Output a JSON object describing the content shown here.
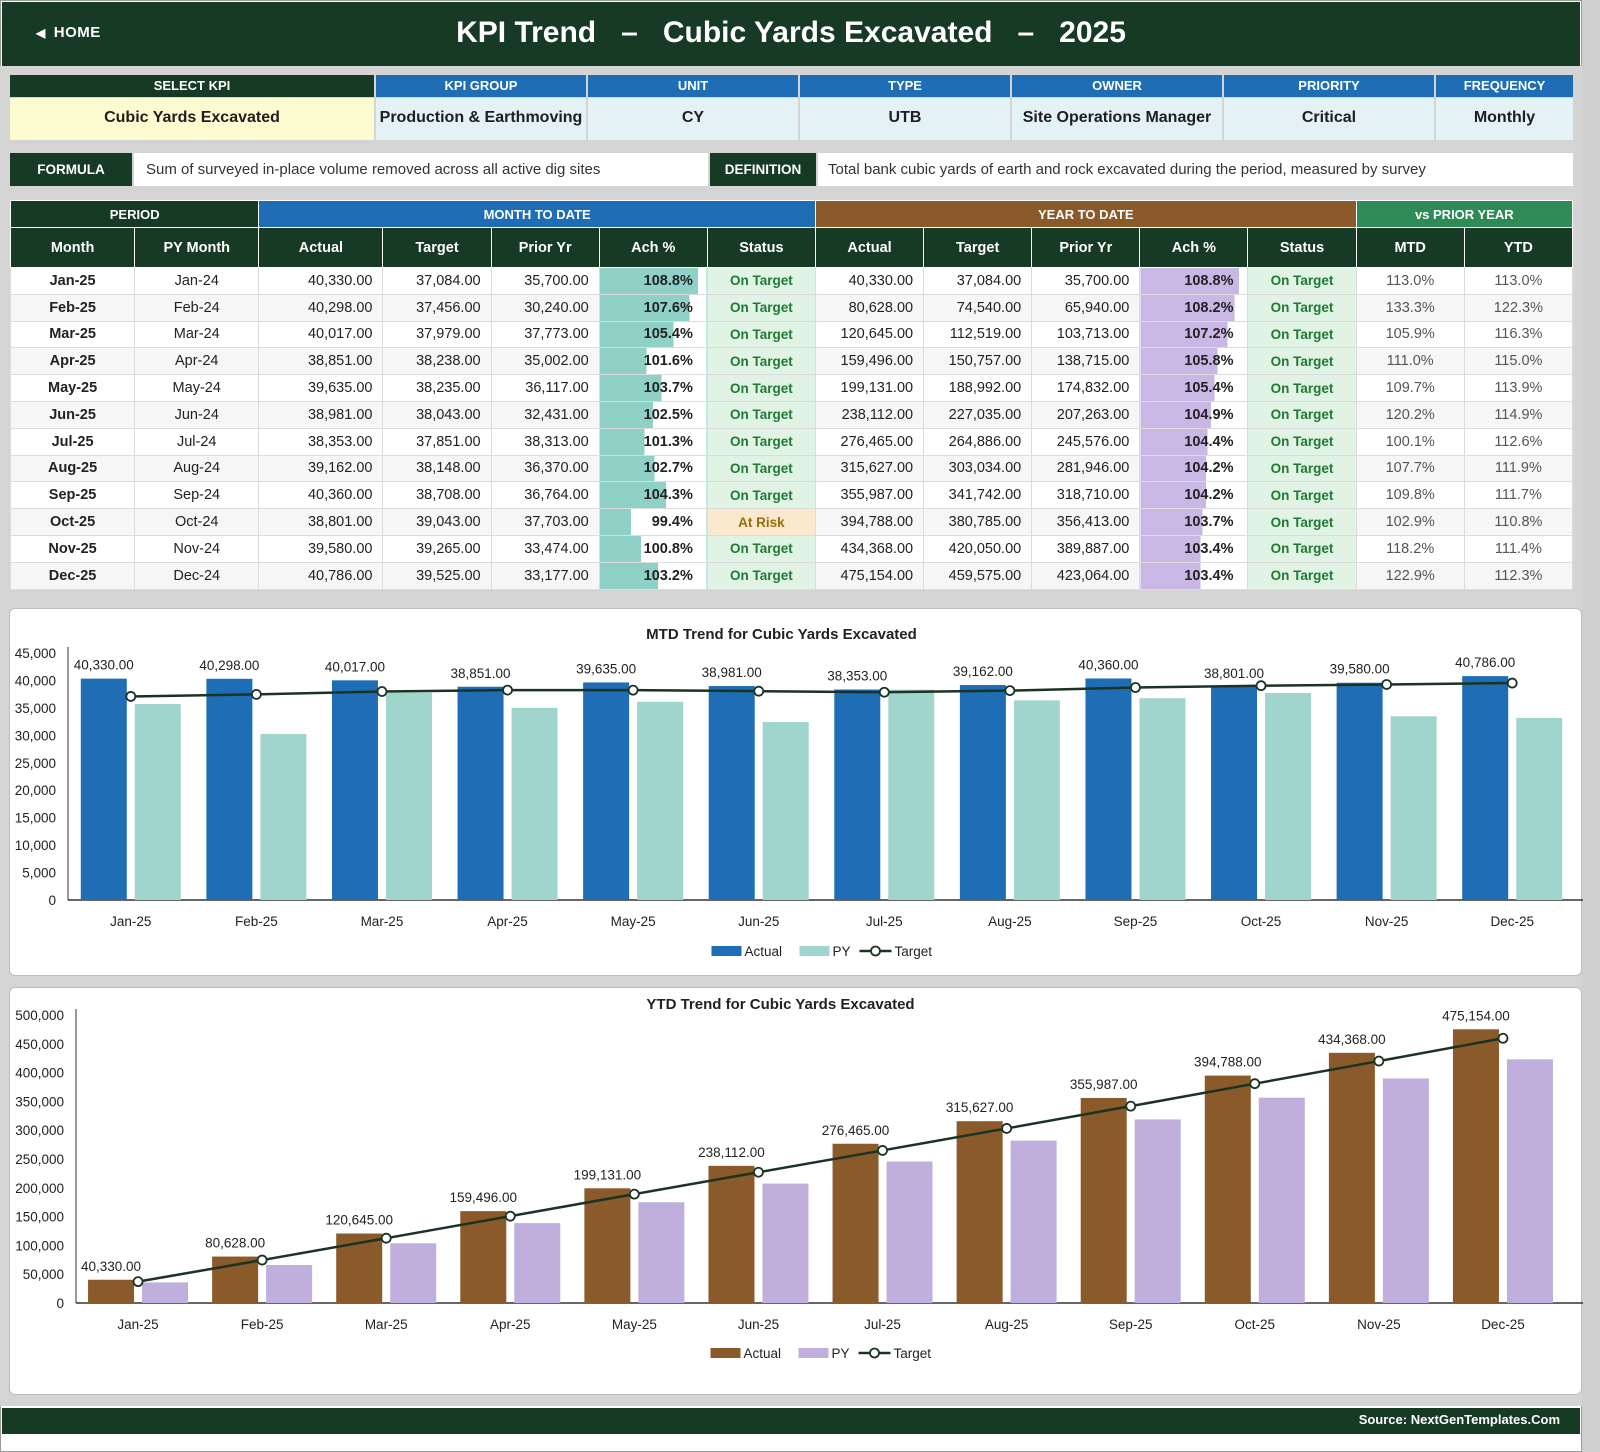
{
  "header": {
    "home_label": "HOME",
    "title": "KPI Trend   –   Cubic Yards Excavated   –   2025"
  },
  "kpi_info": {
    "headers": [
      "SELECT KPI",
      "KPI GROUP",
      "UNIT",
      "TYPE",
      "OWNER",
      "PRIORITY",
      "FREQUENCY"
    ],
    "values": [
      "Cubic Yards Excavated",
      "Production & Earthmoving",
      "CY",
      "UTB",
      "Site Operations Manager",
      "Critical",
      "Monthly"
    ]
  },
  "formula": {
    "label": "FORMULA",
    "text": "Sum of surveyed in-place volume removed across all active dig sites"
  },
  "definition": {
    "label": "DEFINITION",
    "text": "Total bank cubic yards of earth and rock excavated during the period, measured by survey"
  },
  "table": {
    "groups": [
      "PERIOD",
      "MONTH TO DATE",
      "YEAR TO DATE",
      "vs PRIOR YEAR"
    ],
    "columns": [
      "Month",
      "PY Month",
      "Actual",
      "Target",
      "Prior Yr",
      "Ach %",
      "Status",
      "Actual",
      "Target",
      "Prior Yr",
      "Ach %",
      "Status",
      "MTD",
      "YTD"
    ],
    "rows": [
      [
        "Jan-25",
        "Jan-24",
        "40,330.00",
        "37,084.00",
        "35,700.00",
        "108.8%",
        "On Target",
        "40,330.00",
        "37,084.00",
        "35,700.00",
        "108.8%",
        "On Target",
        "113.0%",
        "113.0%"
      ],
      [
        "Feb-25",
        "Feb-24",
        "40,298.00",
        "37,456.00",
        "30,240.00",
        "107.6%",
        "On Target",
        "80,628.00",
        "74,540.00",
        "65,940.00",
        "108.2%",
        "On Target",
        "133.3%",
        "122.3%"
      ],
      [
        "Mar-25",
        "Mar-24",
        "40,017.00",
        "37,979.00",
        "37,773.00",
        "105.4%",
        "On Target",
        "120,645.00",
        "112,519.00",
        "103,713.00",
        "107.2%",
        "On Target",
        "105.9%",
        "116.3%"
      ],
      [
        "Apr-25",
        "Apr-24",
        "38,851.00",
        "38,238.00",
        "35,002.00",
        "101.6%",
        "On Target",
        "159,496.00",
        "150,757.00",
        "138,715.00",
        "105.8%",
        "On Target",
        "111.0%",
        "115.0%"
      ],
      [
        "May-25",
        "May-24",
        "39,635.00",
        "38,235.00",
        "36,117.00",
        "103.7%",
        "On Target",
        "199,131.00",
        "188,992.00",
        "174,832.00",
        "105.4%",
        "On Target",
        "109.7%",
        "113.9%"
      ],
      [
        "Jun-25",
        "Jun-24",
        "38,981.00",
        "38,043.00",
        "32,431.00",
        "102.5%",
        "On Target",
        "238,112.00",
        "227,035.00",
        "207,263.00",
        "104.9%",
        "On Target",
        "120.2%",
        "114.9%"
      ],
      [
        "Jul-25",
        "Jul-24",
        "38,353.00",
        "37,851.00",
        "38,313.00",
        "101.3%",
        "On Target",
        "276,465.00",
        "264,886.00",
        "245,576.00",
        "104.4%",
        "On Target",
        "100.1%",
        "112.6%"
      ],
      [
        "Aug-25",
        "Aug-24",
        "39,162.00",
        "38,148.00",
        "36,370.00",
        "102.7%",
        "On Target",
        "315,627.00",
        "303,034.00",
        "281,946.00",
        "104.2%",
        "On Target",
        "107.7%",
        "111.9%"
      ],
      [
        "Sep-25",
        "Sep-24",
        "40,360.00",
        "38,708.00",
        "36,764.00",
        "104.3%",
        "On Target",
        "355,987.00",
        "341,742.00",
        "318,710.00",
        "104.2%",
        "On Target",
        "109.8%",
        "111.7%"
      ],
      [
        "Oct-25",
        "Oct-24",
        "38,801.00",
        "39,043.00",
        "37,703.00",
        "99.4%",
        "At Risk",
        "394,788.00",
        "380,785.00",
        "356,413.00",
        "103.7%",
        "On Target",
        "102.9%",
        "110.8%"
      ],
      [
        "Nov-25",
        "Nov-24",
        "39,580.00",
        "39,265.00",
        "33,474.00",
        "100.8%",
        "On Target",
        "434,368.00",
        "420,050.00",
        "389,887.00",
        "103.4%",
        "On Target",
        "118.2%",
        "111.4%"
      ],
      [
        "Dec-25",
        "Dec-24",
        "40,786.00",
        "39,525.00",
        "33,177.00",
        "103.2%",
        "On Target",
        "475,154.00",
        "459,575.00",
        "423,064.00",
        "103.4%",
        "On Target",
        "122.9%",
        "112.3%"
      ]
    ]
  },
  "colors": {
    "dark_green": "#173a25",
    "blue": "#1f6db5",
    "teal": "#a0d5cd",
    "brown": "#8b5a2b",
    "lavender": "#c0aedc",
    "mid_green": "#2e8b57",
    "ok_green": "#1f7a34",
    "risk": "#9a6b0e"
  },
  "chart_data": [
    {
      "type": "bar",
      "title": "MTD Trend for Cubic Yards Excavated",
      "categories": [
        "Jan-25",
        "Feb-25",
        "Mar-25",
        "Apr-25",
        "May-25",
        "Jun-25",
        "Jul-25",
        "Aug-25",
        "Sep-25",
        "Oct-25",
        "Nov-25",
        "Dec-25"
      ],
      "series": [
        {
          "name": "Actual",
          "kind": "bar",
          "values": [
            40330,
            40298,
            40017,
            38851,
            39635,
            38981,
            38353,
            39162,
            40360,
            38801,
            39580,
            40786
          ]
        },
        {
          "name": "PY",
          "kind": "bar",
          "values": [
            35700,
            30240,
            37773,
            35002,
            36117,
            32431,
            38313,
            36370,
            36764,
            37703,
            33474,
            33177
          ]
        },
        {
          "name": "Target",
          "kind": "line",
          "values": [
            37084,
            37456,
            37979,
            38238,
            38235,
            38043,
            37851,
            38148,
            38708,
            39043,
            39265,
            39525
          ]
        }
      ],
      "data_labels": [
        "40,330.00",
        "40,298.00",
        "40,017.00",
        "38,851.00",
        "39,635.00",
        "38,981.00",
        "38,353.00",
        "39,162.00",
        "40,360.00",
        "38,801.00",
        "39,580.00",
        "40,786.00"
      ],
      "ylim": [
        0,
        45000
      ],
      "yticks": [
        "0",
        "5,000",
        "10,000",
        "15,000",
        "20,000",
        "25,000",
        "30,000",
        "35,000",
        "40,000",
        "45,000"
      ],
      "legend": "bottom"
    },
    {
      "type": "bar",
      "title": "YTD Trend for Cubic Yards Excavated",
      "categories": [
        "Jan-25",
        "Feb-25",
        "Mar-25",
        "Apr-25",
        "May-25",
        "Jun-25",
        "Jul-25",
        "Aug-25",
        "Sep-25",
        "Oct-25",
        "Nov-25",
        "Dec-25"
      ],
      "series": [
        {
          "name": "Actual",
          "kind": "bar",
          "values": [
            40330,
            80628,
            120645,
            159496,
            199131,
            238112,
            276465,
            315627,
            355987,
            394788,
            434368,
            475154
          ]
        },
        {
          "name": "PY",
          "kind": "bar",
          "values": [
            35700,
            65940,
            103713,
            138715,
            174832,
            207263,
            245576,
            281946,
            318710,
            356413,
            389887,
            423064
          ]
        },
        {
          "name": "Target",
          "kind": "line",
          "values": [
            37084,
            74540,
            112519,
            150757,
            188992,
            227035,
            264886,
            303034,
            341742,
            380785,
            420050,
            459575
          ]
        }
      ],
      "data_labels": [
        "40,330.00",
        "80,628.00",
        "120,645.00",
        "159,496.00",
        "199,131.00",
        "238,112.00",
        "276,465.00",
        "315,627.00",
        "355,987.00",
        "394,788.00",
        "434,368.00",
        "475,154.00"
      ],
      "ylim": [
        0,
        500000
      ],
      "yticks": [
        "0",
        "50,000",
        "100,000",
        "150,000",
        "200,000",
        "250,000",
        "300,000",
        "350,000",
        "400,000",
        "450,000",
        "500,000"
      ],
      "legend": "bottom"
    }
  ],
  "footer": {
    "source": "Source: NextGenTemplates.Com"
  }
}
